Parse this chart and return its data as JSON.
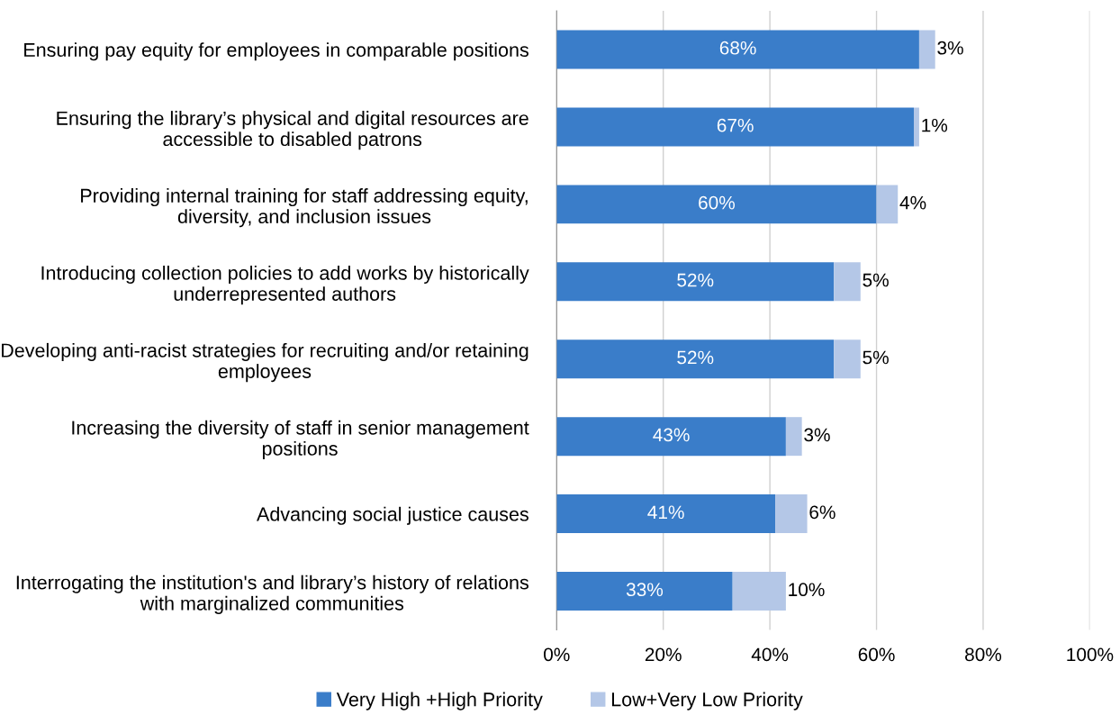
{
  "chart_data": {
    "type": "bar",
    "orientation": "horizontal",
    "stacked": true,
    "data_labels": true,
    "grid": "x",
    "legend": "bottom",
    "categories": [
      "Ensuring pay equity for employees in comparable positions",
      "Ensuring the library’s physical and digital resources are accessible to disabled patrons",
      "Providing internal training for staff addressing equity, diversity, and inclusion issues",
      "Introducing collection policies to add works by historically underrepresented authors",
      "Developing anti-racist strategies for recruiting and/or retaining employees",
      "Increasing the diversity of staff in senior management positions",
      "Advancing social justice causes",
      "Interrogating the institution's and library’s history of relations with marginalized communities"
    ],
    "series": [
      {
        "name": "Very High +High Priority",
        "color": "#3a7dc9",
        "values": [
          68,
          67,
          60,
          52,
          52,
          43,
          41,
          33
        ],
        "value_labels": [
          "68%",
          "67%",
          "60%",
          "52%",
          "52%",
          "43%",
          "41%",
          "33%"
        ]
      },
      {
        "name": "Low+Very Low Priority",
        "color": "#b4c7e7",
        "values": [
          3,
          1,
          4,
          5,
          5,
          3,
          6,
          10
        ],
        "value_labels": [
          "3%",
          "1%",
          "4%",
          "5%",
          "5%",
          "3%",
          "6%",
          "10%"
        ]
      }
    ],
    "xlim": [
      0,
      100
    ],
    "xticks": [
      {
        "value": 0,
        "label": "0%"
      },
      {
        "value": 20,
        "label": "20%"
      },
      {
        "value": 40,
        "label": "40%"
      },
      {
        "value": 60,
        "label": "60%"
      },
      {
        "value": 80,
        "label": "80%"
      },
      {
        "value": 100,
        "label": "100%"
      }
    ]
  }
}
